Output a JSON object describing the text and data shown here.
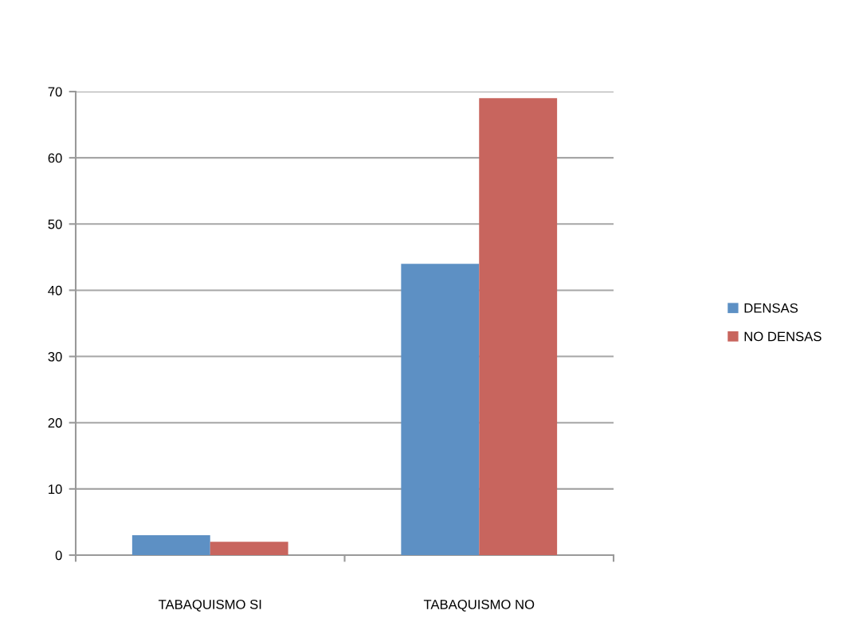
{
  "chart_data": {
    "type": "bar",
    "categories": [
      "TABAQUISMO SI",
      "TABAQUISMO NO"
    ],
    "series": [
      {
        "name": "DENSAS",
        "color": "#5d90c4",
        "values": [
          3,
          44
        ]
      },
      {
        "name": "NO DENSAS",
        "color": "#c8655e",
        "values": [
          2,
          69
        ]
      }
    ],
    "ylim": [
      0,
      70
    ],
    "yticks": [
      0,
      10,
      20,
      30,
      40,
      50,
      60,
      70
    ],
    "grid": "y",
    "legend": "right"
  }
}
